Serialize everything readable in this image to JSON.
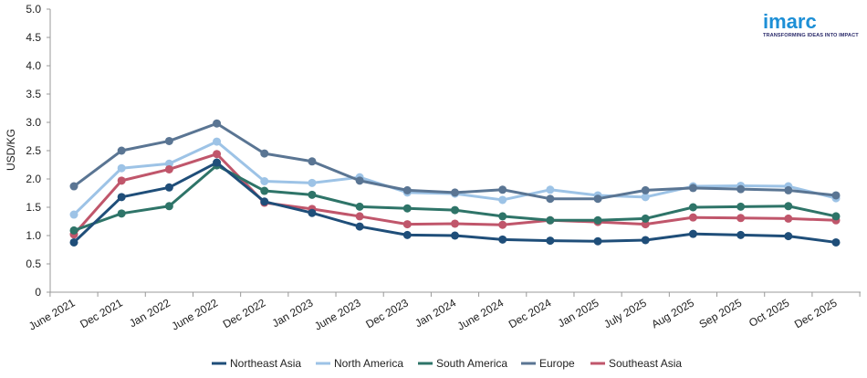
{
  "logo": {
    "name": "imarc",
    "tagline": "TRANSFORMING IDEAS INTO IMPACT",
    "color": "#1d8fd6"
  },
  "chart_data": {
    "type": "line",
    "title": "",
    "xlabel": "",
    "ylabel": "USD/KG",
    "ylim": [
      0,
      5
    ],
    "yticks": [
      "0",
      "0.5",
      "1.0",
      "1.5",
      "2.0",
      "2.5",
      "3.0",
      "3.5",
      "4.0",
      "4.5",
      "5.0"
    ],
    "grid": false,
    "legend_position": "bottom",
    "categories": [
      "June 2021",
      "Dec 2021",
      "Jan 2022",
      "June 2022",
      "Dec 2022",
      "Jan 2023",
      "June 2023",
      "Dec 2023",
      "Jan 2024",
      "June 2024",
      "Dec 2024",
      "Jan 2025",
      "July 2025",
      "Aug 2025",
      "Sep 2025",
      "Oct 2025",
      "Dec 2025"
    ],
    "series": [
      {
        "name": "Northeast Asia",
        "color": "#1f4e79",
        "values": [
          0.88,
          1.68,
          1.85,
          2.29,
          1.6,
          1.4,
          1.16,
          1.01,
          1.0,
          0.93,
          0.91,
          0.9,
          0.92,
          1.03,
          1.01,
          0.99,
          0.88
        ]
      },
      {
        "name": "North America",
        "color": "#9dc3e6",
        "values": [
          1.37,
          2.19,
          2.27,
          2.66,
          1.96,
          1.93,
          2.03,
          1.76,
          1.74,
          1.63,
          1.81,
          1.71,
          1.68,
          1.87,
          1.88,
          1.87,
          1.66
        ]
      },
      {
        "name": "South America",
        "color": "#2e7468",
        "values": [
          1.09,
          1.39,
          1.52,
          2.24,
          1.79,
          1.72,
          1.51,
          1.48,
          1.45,
          1.34,
          1.27,
          1.27,
          1.3,
          1.5,
          1.51,
          1.52,
          1.34
        ]
      },
      {
        "name": "Europe",
        "color": "#5a7593",
        "values": [
          1.87,
          2.5,
          2.67,
          2.98,
          2.45,
          2.31,
          1.97,
          1.8,
          1.76,
          1.81,
          1.65,
          1.65,
          1.8,
          1.84,
          1.82,
          1.8,
          1.71
        ]
      },
      {
        "name": "Southeast Asia",
        "color": "#c0566b",
        "values": [
          1.02,
          1.97,
          2.17,
          2.44,
          1.58,
          1.47,
          1.34,
          1.2,
          1.21,
          1.19,
          1.27,
          1.24,
          1.2,
          1.32,
          1.31,
          1.3,
          1.27
        ]
      }
    ]
  }
}
